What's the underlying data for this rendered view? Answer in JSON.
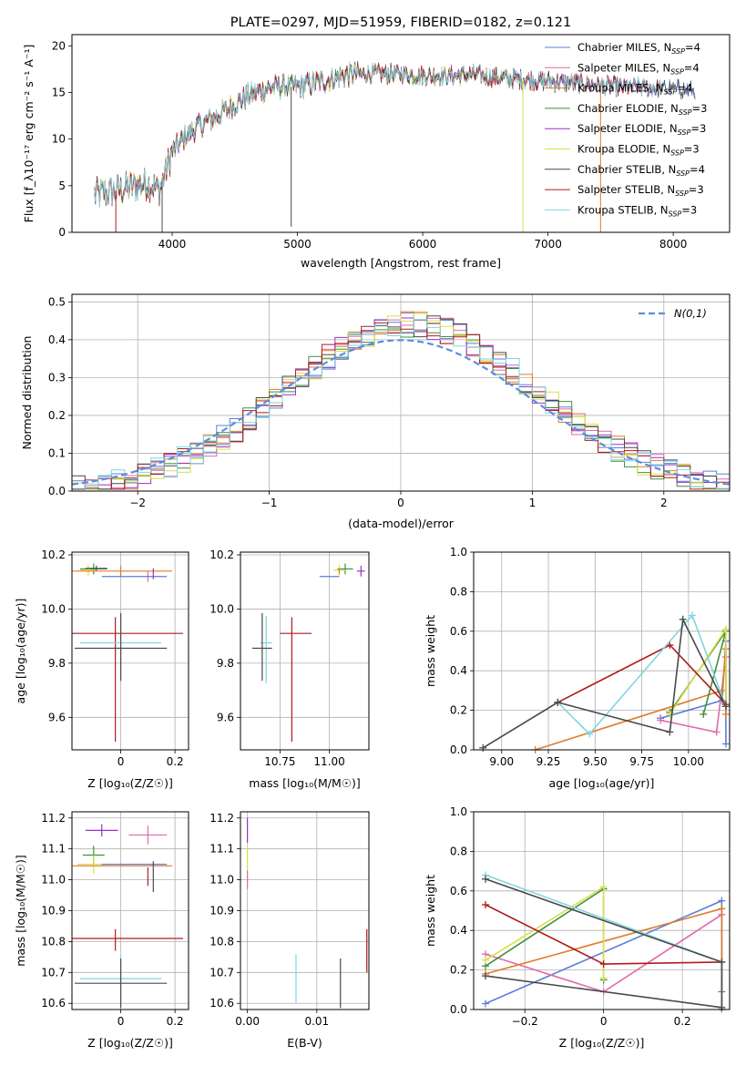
{
  "colors": {
    "chabrier_miles": "#5b7fd6",
    "salpeter_miles": "#e06aa8",
    "kroupa_miles": "#e07b2a",
    "chabrier_elodie": "#3f8f3f",
    "salpeter_elodie": "#9b30c8",
    "kroupa_elodie": "#d8df4a",
    "chabrier_stelib": "#4a4a4a",
    "salpeter_stelib": "#b01c1c",
    "kroupa_stelib": "#7fd6e0",
    "normal": "#5b8ee0",
    "grid": "#b0b0b0"
  },
  "chart_data": [
    {
      "id": "spectrum",
      "type": "line",
      "title": "PLATE=0297, MJD=51959, FIBERID=0182, z=0.121",
      "xlabel": "wavelength [Angstrom, rest frame]",
      "ylabel": "Flux [f_λ10⁻¹⁷ erg cm⁻² s⁻¹ A⁻¹]",
      "xlim": [
        3200,
        8450
      ],
      "ylim": [
        0,
        21.2
      ],
      "xticks": [
        4000,
        5000,
        6000,
        7000,
        8000
      ],
      "yticks": [
        0,
        5,
        10,
        15,
        20
      ],
      "grid": false,
      "legend_position": "top-right",
      "legend": [
        {
          "key": "chabrier_miles",
          "label": "Chabrier MILES, N",
          "sub": "SSP",
          "suffix": "=4"
        },
        {
          "key": "salpeter_miles",
          "label": "Salpeter MILES, N",
          "sub": "SSP",
          "suffix": "=4"
        },
        {
          "key": "kroupa_miles",
          "label": "Kroupa MILES, N",
          "sub": "SSP",
          "suffix": "=4"
        },
        {
          "key": "chabrier_elodie",
          "label": "Chabrier ELODIE, N",
          "sub": "SSP",
          "suffix": "=3"
        },
        {
          "key": "salpeter_elodie",
          "label": "Salpeter ELODIE, N",
          "sub": "SSP",
          "suffix": "=3"
        },
        {
          "key": "kroupa_elodie",
          "label": "Kroupa ELODIE, N",
          "sub": "SSP",
          "suffix": "=3"
        },
        {
          "key": "chabrier_stelib",
          "label": "Chabrier STELIB, N",
          "sub": "SSP",
          "suffix": "=4"
        },
        {
          "key": "salpeter_stelib",
          "label": "Salpeter STELIB, N",
          "sub": "SSP",
          "suffix": "=3"
        },
        {
          "key": "kroupa_stelib",
          "label": "Kroupa STELIB, N",
          "sub": "SSP",
          "suffix": "=3"
        }
      ],
      "envelope": {
        "x": [
          3380,
          3500,
          3650,
          3800,
          3900,
          4000,
          4100,
          4200,
          4300,
          4400,
          4600,
          4800,
          5000,
          5200,
          5400,
          5600,
          5800,
          6000,
          6200,
          6400,
          6600,
          6800,
          7000,
          7200,
          7400,
          7600,
          7800,
          8000,
          8180
        ],
        "y": [
          4.0,
          4.3,
          4.8,
          5.3,
          4.6,
          8.6,
          10.2,
          11.3,
          12.0,
          12.8,
          14.6,
          15.6,
          15.6,
          16.2,
          16.9,
          17.0,
          17.0,
          16.8,
          16.8,
          16.9,
          16.6,
          16.4,
          16.2,
          16.0,
          15.8,
          15.6,
          15.5,
          15.4,
          15.2
        ]
      },
      "dips": [
        {
          "key": "chabrier_stelib",
          "x": 4950,
          "y": 0.6
        },
        {
          "key": "kroupa_elodie",
          "x": 6800,
          "y": 0
        },
        {
          "key": "kroupa_miles",
          "x": 7420,
          "y": 0
        },
        {
          "key": "salpeter_stelib",
          "x": 3550,
          "y": 0
        },
        {
          "key": "chabrier_stelib",
          "x": 3920,
          "y": 0
        }
      ]
    },
    {
      "id": "residuals",
      "type": "histogram",
      "xlabel": "(data-model)/error",
      "ylabel": "Normed distribution",
      "xlim": [
        -2.5,
        2.5
      ],
      "ylim": [
        0,
        0.52
      ],
      "xticks": [
        -2,
        -1,
        0,
        1,
        2
      ],
      "yticks": [
        0.0,
        0.1,
        0.2,
        0.3,
        0.4,
        0.5
      ],
      "grid": true,
      "legend_position": "top-right",
      "legend": [
        "N(0,1)"
      ],
      "bin_width": 0.1
    },
    {
      "id": "age_vs_Z",
      "type": "errorbar",
      "xlabel": "Z [log₁₀(Z/Z☉)]",
      "ylabel": "age [log₁₀(age/yr)]",
      "xlim": [
        -0.18,
        0.25
      ],
      "ylim": [
        9.48,
        10.21
      ],
      "xticks": [
        0.0,
        0.2
      ],
      "yticks": [
        9.6,
        9.8,
        10.0,
        10.2
      ],
      "grid": true,
      "points": [
        {
          "key": "chabrier_elodie",
          "x": -0.1,
          "y": 10.148,
          "xerr": [
            0.05,
            0.05
          ],
          "yerr": [
            0.02,
            0.02
          ]
        },
        {
          "key": "kroupa_elodie",
          "x": -0.12,
          "y": 10.143,
          "xerr": [
            0.03,
            0.03
          ],
          "yerr": [
            0.02,
            0.02
          ]
        },
        {
          "key": "chabrier_stelib",
          "x": -0.09,
          "y": 10.15,
          "xerr": [
            0.04,
            0.04
          ],
          "yerr": [
            0.01,
            0.01
          ]
        },
        {
          "key": "kroupa_miles",
          "x": 0.0,
          "y": 10.14,
          "xerr": [
            0.19,
            0.19
          ],
          "yerr": [
            0.02,
            0.02
          ]
        },
        {
          "key": "salpeter_miles",
          "x": 0.1,
          "y": 10.12,
          "xerr": [
            0.0,
            0.0
          ],
          "yerr": [
            0.02,
            0.02
          ]
        },
        {
          "key": "chabrier_miles",
          "x": 0.05,
          "y": 10.12,
          "xerr": [
            0.12,
            0.12
          ],
          "yerr": [
            0.0,
            0.0
          ]
        },
        {
          "key": "salpeter_elodie",
          "x": 0.12,
          "y": 10.13,
          "xerr": [
            0.0,
            0.0
          ],
          "yerr": [
            0.02,
            0.02
          ]
        },
        {
          "key": "salpeter_stelib",
          "x": -0.02,
          "y": 9.91,
          "xerr": [
            0.25,
            0.25
          ],
          "yerr": [
            0.4,
            0.06
          ]
        },
        {
          "key": "kroupa_stelib",
          "x": 0.0,
          "y": 9.875,
          "xerr": [
            0.15,
            0.15
          ],
          "yerr": [
            0.15,
            0.1
          ]
        },
        {
          "key": "chabrier_stelib",
          "x": 0.0,
          "y": 9.855,
          "xerr": [
            0.17,
            0.17
          ],
          "yerr": [
            0.12,
            0.13
          ]
        }
      ]
    },
    {
      "id": "age_vs_mass",
      "type": "errorbar",
      "xlabel": "mass [log₁₀(M/M☉)]",
      "ylabel": "",
      "xlim": [
        10.55,
        11.2
      ],
      "ylim": [
        9.48,
        10.21
      ],
      "xticks": [
        10.75,
        11.0
      ],
      "xticklabels": [
        "10.75",
        "11.00"
      ],
      "yticks": [
        9.6,
        9.8,
        10.0,
        10.2
      ],
      "grid": true,
      "points": [
        {
          "key": "chabrier_elodie",
          "x": 11.08,
          "y": 10.148,
          "xerr": [
            0.04,
            0.04
          ],
          "yerr": [
            0.02,
            0.02
          ]
        },
        {
          "key": "kroupa_elodie",
          "x": 11.05,
          "y": 10.143,
          "xerr": [
            0.03,
            0.03
          ],
          "yerr": [
            0.02,
            0.02
          ]
        },
        {
          "key": "salpeter_elodie",
          "x": 11.16,
          "y": 10.14,
          "xerr": [
            0.02,
            0.02
          ],
          "yerr": [
            0.02,
            0.02
          ]
        },
        {
          "key": "kroupa_miles",
          "x": 11.05,
          "y": 10.14,
          "xerr": [
            0.0,
            0.0
          ],
          "yerr": [
            0.01,
            0.01
          ]
        },
        {
          "key": "chabrier_miles",
          "x": 11.0,
          "y": 10.12,
          "xerr": [
            0.05,
            0.05
          ],
          "yerr": [
            0.0,
            0.0
          ]
        },
        {
          "key": "salpeter_stelib",
          "x": 10.81,
          "y": 9.91,
          "xerr": [
            0.06,
            0.1
          ],
          "yerr": [
            0.4,
            0.06
          ]
        },
        {
          "key": "kroupa_stelib",
          "x": 10.68,
          "y": 9.875,
          "xerr": [
            0.03,
            0.03
          ],
          "yerr": [
            0.15,
            0.1
          ]
        },
        {
          "key": "chabrier_stelib",
          "x": 10.66,
          "y": 9.855,
          "xerr": [
            0.05,
            0.05
          ],
          "yerr": [
            0.12,
            0.13
          ]
        }
      ]
    },
    {
      "id": "mass_weight_vs_age",
      "type": "line",
      "xlabel": "age [log₁₀(age/yr)]",
      "ylabel": "mass weight",
      "xlim": [
        8.85,
        10.22
      ],
      "ylim": [
        0,
        1.0
      ],
      "xticks": [
        9.0,
        9.25,
        9.5,
        9.75,
        10.0
      ],
      "xticklabels": [
        "9.00",
        "9.25",
        "9.50",
        "9.75",
        "10.00"
      ],
      "yticks": [
        0.0,
        0.2,
        0.4,
        0.6,
        0.8,
        1.0
      ],
      "grid": true,
      "series": [
        {
          "key": "chabrier_miles",
          "x": [
            9.85,
            10.18,
            10.2,
            10.2
          ],
          "y": [
            0.16,
            0.25,
            0.55,
            0.03
          ]
        },
        {
          "key": "salpeter_miles",
          "x": [
            9.85,
            10.15,
            10.2
          ],
          "y": [
            0.15,
            0.09,
            0.47
          ]
        },
        {
          "key": "kroupa_miles",
          "x": [
            9.18,
            10.18,
            10.2,
            10.2
          ],
          "y": [
            0.0,
            0.3,
            0.51,
            0.18
          ]
        },
        {
          "key": "chabrier_elodie",
          "x": [
            9.9,
            10.2,
            10.08
          ],
          "y": [
            0.19,
            0.6,
            0.18
          ]
        },
        {
          "key": "kroupa_elodie",
          "x": [
            9.9,
            10.2,
            10.2
          ],
          "y": [
            0.18,
            0.61,
            0.23
          ]
        },
        {
          "key": "salpeter_stelib",
          "x": [
            9.3,
            9.9,
            10.2
          ],
          "y": [
            0.24,
            0.53,
            0.23
          ]
        },
        {
          "key": "kroupa_stelib",
          "x": [
            9.3,
            9.47,
            10.02,
            10.2
          ],
          "y": [
            0.24,
            0.08,
            0.68,
            0.22
          ]
        },
        {
          "key": "chabrier_stelib",
          "x": [
            8.9,
            9.3,
            9.9,
            9.97,
            10.2
          ],
          "y": [
            0.01,
            0.24,
            0.09,
            0.66,
            0.22
          ]
        }
      ]
    },
    {
      "id": "mass_vs_Z",
      "type": "errorbar",
      "xlabel": "Z [log₁₀(Z/Z☉)]",
      "ylabel": "mass [log₁₀(M/M☉)]",
      "xlim": [
        -0.18,
        0.25
      ],
      "ylim": [
        10.58,
        11.22
      ],
      "xticks": [
        0.0,
        0.2
      ],
      "yticks": [
        10.6,
        10.7,
        10.8,
        10.9,
        11.0,
        11.1,
        11.2
      ],
      "grid": true,
      "points": [
        {
          "key": "salpeter_elodie",
          "x": -0.07,
          "y": 11.16,
          "xerr": [
            0.06,
            0.06
          ],
          "yerr": [
            0.02,
            0.02
          ]
        },
        {
          "key": "salpeter_miles",
          "x": 0.1,
          "y": 11.145,
          "xerr": [
            0.07,
            0.07
          ],
          "yerr": [
            0.03,
            0.03
          ]
        },
        {
          "key": "chabrier_elodie",
          "x": -0.1,
          "y": 11.08,
          "xerr": [
            0.04,
            0.04
          ],
          "yerr": [
            0.03,
            0.03
          ]
        },
        {
          "key": "kroupa_elodie",
          "x": -0.1,
          "y": 11.05,
          "xerr": [
            0.06,
            0.06
          ],
          "yerr": [
            0.03,
            0.03
          ]
        },
        {
          "key": "kroupa_miles",
          "x": 0.0,
          "y": 11.045,
          "xerr": [
            0.19,
            0.19
          ],
          "yerr": [
            0.0,
            0.0
          ]
        },
        {
          "key": "chabrier_miles",
          "x": 0.05,
          "y": 11.05,
          "xerr": [
            0.12,
            0.12
          ],
          "yerr": [
            0.0,
            0.0
          ]
        },
        {
          "key": "salpeter_stelib",
          "x": 0.1,
          "y": 11.01,
          "xerr": [
            0.0,
            0.0
          ],
          "yerr": [
            0.03,
            0.03
          ]
        },
        {
          "key": "chabrier_stelib",
          "x": 0.12,
          "y": 11.02,
          "xerr": [
            0.0,
            0.0
          ],
          "yerr": [
            0.06,
            0.04
          ]
        },
        {
          "key": "salpeter_stelib",
          "x": -0.02,
          "y": 10.81,
          "xerr": [
            0.25,
            0.25
          ],
          "yerr": [
            0.04,
            0.03
          ]
        },
        {
          "key": "kroupa_stelib",
          "x": 0.0,
          "y": 10.68,
          "xerr": [
            0.15,
            0.15
          ],
          "yerr": [
            0.08,
            0.08
          ]
        },
        {
          "key": "chabrier_stelib",
          "x": 0.0,
          "y": 10.665,
          "xerr": [
            0.17,
            0.17
          ],
          "yerr": [
            0.08,
            0.08
          ]
        }
      ]
    },
    {
      "id": "mass_vs_ebv",
      "type": "errorbar",
      "xlabel": "E(B-V)",
      "ylabel": "",
      "xlim": [
        -0.001,
        0.0175
      ],
      "ylim": [
        10.58,
        11.22
      ],
      "xticks": [
        0.0,
        0.01
      ],
      "xticklabels": [
        "0.00",
        "0.01"
      ],
      "yticks": [
        10.6,
        10.7,
        10.8,
        10.9,
        11.0,
        11.1,
        11.2
      ],
      "grid": true,
      "points": [
        {
          "key": "salpeter_elodie",
          "x": 0.0,
          "y": 11.16,
          "xerr": [
            0,
            0
          ],
          "yerr": [
            0.04,
            0.04
          ]
        },
        {
          "key": "kroupa_elodie",
          "x": 0.0,
          "y": 11.05,
          "xerr": [
            0,
            0
          ],
          "yerr": [
            0.06,
            0.06
          ]
        },
        {
          "key": "salpeter_miles",
          "x": 0.0,
          "y": 11.0,
          "xerr": [
            0,
            0
          ],
          "yerr": [
            0.03,
            0.03
          ]
        },
        {
          "key": "kroupa_stelib",
          "x": 0.007,
          "y": 10.68,
          "xerr": [
            0,
            0
          ],
          "yerr": [
            0.08,
            0.08
          ]
        },
        {
          "key": "chabrier_stelib",
          "x": 0.0134,
          "y": 10.665,
          "xerr": [
            0,
            0
          ],
          "yerr": [
            0.08,
            0.08
          ]
        },
        {
          "key": "salpeter_stelib",
          "x": 0.0172,
          "y": 10.77,
          "xerr": [
            0,
            0
          ],
          "yerr": [
            0.07,
            0.07
          ]
        }
      ]
    },
    {
      "id": "mass_weight_vs_Z",
      "type": "line",
      "xlabel": "Z [log₁₀(Z/Z☉)]",
      "ylabel": "mass weight",
      "xlim": [
        -0.33,
        0.32
      ],
      "ylim": [
        0,
        1.0
      ],
      "xticks": [
        -0.2,
        0.0,
        0.2
      ],
      "yticks": [
        0.0,
        0.2,
        0.4,
        0.6,
        0.8,
        1.0
      ],
      "grid": true,
      "series": [
        {
          "key": "chabrier_miles",
          "x": [
            -0.3,
            0.3,
            0.3
          ],
          "y": [
            0.03,
            0.55,
            0.09
          ]
        },
        {
          "key": "salpeter_miles",
          "x": [
            -0.3,
            0.0,
            0.3
          ],
          "y": [
            0.28,
            0.09,
            0.48
          ]
        },
        {
          "key": "kroupa_miles",
          "x": [
            -0.3,
            0.3,
            0.3
          ],
          "y": [
            0.18,
            0.51,
            0.0
          ]
        },
        {
          "key": "chabrier_elodie",
          "x": [
            -0.3,
            0.0,
            0.0
          ],
          "y": [
            0.22,
            0.61,
            0.15
          ]
        },
        {
          "key": "kroupa_elodie",
          "x": [
            -0.3,
            0.0,
            0.0
          ],
          "y": [
            0.25,
            0.62,
            0.16
          ]
        },
        {
          "key": "salpeter_stelib",
          "x": [
            -0.3,
            0.0,
            0.3
          ],
          "y": [
            0.53,
            0.23,
            0.24
          ]
        },
        {
          "key": "kroupa_stelib",
          "x": [
            -0.3,
            0.3,
            0.3
          ],
          "y": [
            0.68,
            0.24,
            0.0
          ]
        },
        {
          "key": "chabrier_stelib",
          "x": [
            -0.3,
            0.3,
            0.3,
            -0.3
          ],
          "y": [
            0.66,
            0.24,
            0.01,
            0.17
          ]
        }
      ]
    }
  ]
}
